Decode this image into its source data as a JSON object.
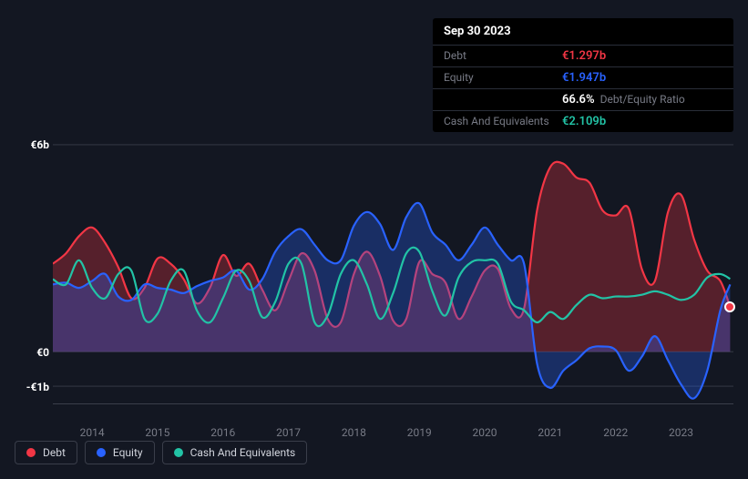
{
  "tooltip": {
    "date": "Sep 30 2023",
    "rows": [
      {
        "label": "Debt",
        "value": "€1.297b",
        "color": "#f23645"
      },
      {
        "label": "Equity",
        "value": "€1.947b",
        "color": "#2962ff"
      },
      {
        "label": "",
        "value": "66.6%",
        "extra": "Debt/Equity Ratio",
        "color": "#ffffff"
      },
      {
        "label": "Cash And Equivalents",
        "value": "€2.109b",
        "color": "#22c3a6"
      }
    ]
  },
  "chart": {
    "type": "area",
    "background_color": "#131722",
    "grid_color": "#3a3e4a",
    "y_domain": [
      -1.5,
      6.5
    ],
    "y_ticks": [
      {
        "v": 6,
        "label": "€6b"
      },
      {
        "v": 0,
        "label": "€0"
      },
      {
        "v": -1,
        "label": "-€1b"
      }
    ],
    "x_domain": [
      2013.4,
      2023.8
    ],
    "x_ticks": [
      2014,
      2015,
      2016,
      2017,
      2018,
      2019,
      2020,
      2021,
      2022,
      2023
    ],
    "series": {
      "debt": {
        "color": "#f23645",
        "fill_opacity": 0.3,
        "data": [
          [
            2013.4,
            2.55
          ],
          [
            2013.6,
            2.85
          ],
          [
            2013.8,
            3.35
          ],
          [
            2014.0,
            3.6
          ],
          [
            2014.2,
            3.15
          ],
          [
            2014.4,
            2.45
          ],
          [
            2014.6,
            1.55
          ],
          [
            2014.8,
            1.85
          ],
          [
            2015.0,
            2.7
          ],
          [
            2015.2,
            2.55
          ],
          [
            2015.4,
            2.1
          ],
          [
            2015.6,
            1.4
          ],
          [
            2015.8,
            1.85
          ],
          [
            2016.0,
            2.8
          ],
          [
            2016.2,
            2.2
          ],
          [
            2016.4,
            2.55
          ],
          [
            2016.6,
            1.8
          ],
          [
            2016.8,
            1.2
          ],
          [
            2017.0,
            2.05
          ],
          [
            2017.2,
            2.85
          ],
          [
            2017.4,
            2.35
          ],
          [
            2017.6,
            0.95
          ],
          [
            2017.8,
            0.85
          ],
          [
            2018.0,
            2.25
          ],
          [
            2018.2,
            2.9
          ],
          [
            2018.4,
            2.2
          ],
          [
            2018.6,
            0.9
          ],
          [
            2018.8,
            0.95
          ],
          [
            2019.0,
            2.6
          ],
          [
            2019.2,
            2.25
          ],
          [
            2019.4,
            2.0
          ],
          [
            2019.6,
            0.95
          ],
          [
            2019.8,
            1.6
          ],
          [
            2020.0,
            2.35
          ],
          [
            2020.2,
            2.4
          ],
          [
            2020.4,
            1.25
          ],
          [
            2020.6,
            1.25
          ],
          [
            2020.8,
            4.1
          ],
          [
            2021.0,
            5.35
          ],
          [
            2021.2,
            5.45
          ],
          [
            2021.4,
            5.05
          ],
          [
            2021.6,
            4.9
          ],
          [
            2021.8,
            4.1
          ],
          [
            2022.0,
            3.95
          ],
          [
            2022.2,
            4.15
          ],
          [
            2022.4,
            2.4
          ],
          [
            2022.6,
            2.05
          ],
          [
            2022.8,
            4.05
          ],
          [
            2023.0,
            4.55
          ],
          [
            2023.2,
            3.25
          ],
          [
            2023.4,
            2.35
          ],
          [
            2023.6,
            2.05
          ],
          [
            2023.75,
            1.3
          ]
        ]
      },
      "equity": {
        "color": "#2962ff",
        "fill_opacity": 0.3,
        "data": [
          [
            2013.4,
            1.95
          ],
          [
            2013.6,
            2.0
          ],
          [
            2013.8,
            1.85
          ],
          [
            2014.0,
            2.05
          ],
          [
            2014.2,
            2.25
          ],
          [
            2014.4,
            1.6
          ],
          [
            2014.6,
            1.5
          ],
          [
            2014.8,
            1.95
          ],
          [
            2015.0,
            1.85
          ],
          [
            2015.2,
            1.8
          ],
          [
            2015.4,
            1.7
          ],
          [
            2015.6,
            1.9
          ],
          [
            2015.8,
            2.05
          ],
          [
            2016.0,
            2.15
          ],
          [
            2016.2,
            2.35
          ],
          [
            2016.4,
            1.8
          ],
          [
            2016.6,
            2.1
          ],
          [
            2016.8,
            2.9
          ],
          [
            2017.0,
            3.35
          ],
          [
            2017.2,
            3.55
          ],
          [
            2017.4,
            3.1
          ],
          [
            2017.6,
            2.65
          ],
          [
            2017.8,
            2.65
          ],
          [
            2018.0,
            3.65
          ],
          [
            2018.2,
            4.05
          ],
          [
            2018.4,
            3.7
          ],
          [
            2018.6,
            2.95
          ],
          [
            2018.8,
            3.9
          ],
          [
            2019.0,
            4.3
          ],
          [
            2019.2,
            3.45
          ],
          [
            2019.4,
            3.1
          ],
          [
            2019.6,
            2.65
          ],
          [
            2019.8,
            3.1
          ],
          [
            2020.0,
            3.6
          ],
          [
            2020.2,
            3.1
          ],
          [
            2020.4,
            2.65
          ],
          [
            2020.6,
            2.55
          ],
          [
            2020.8,
            -0.35
          ],
          [
            2021.0,
            -1.05
          ],
          [
            2021.2,
            -0.55
          ],
          [
            2021.4,
            -0.25
          ],
          [
            2021.6,
            0.1
          ],
          [
            2021.8,
            0.15
          ],
          [
            2022.0,
            0.05
          ],
          [
            2022.2,
            -0.55
          ],
          [
            2022.4,
            -0.15
          ],
          [
            2022.6,
            0.45
          ],
          [
            2022.8,
            -0.25
          ],
          [
            2023.0,
            -0.95
          ],
          [
            2023.2,
            -1.35
          ],
          [
            2023.4,
            -0.55
          ],
          [
            2023.6,
            1.2
          ],
          [
            2023.75,
            1.95
          ]
        ]
      },
      "cash": {
        "color": "#22c3a6",
        "fill_opacity": 0.0,
        "data": [
          [
            2013.4,
            2.1
          ],
          [
            2013.6,
            1.95
          ],
          [
            2013.8,
            2.65
          ],
          [
            2014.0,
            1.85
          ],
          [
            2014.2,
            1.55
          ],
          [
            2014.4,
            2.25
          ],
          [
            2014.6,
            2.35
          ],
          [
            2014.8,
            0.95
          ],
          [
            2015.0,
            1.1
          ],
          [
            2015.2,
            2.05
          ],
          [
            2015.4,
            2.35
          ],
          [
            2015.6,
            1.2
          ],
          [
            2015.8,
            0.85
          ],
          [
            2016.0,
            1.55
          ],
          [
            2016.2,
            2.35
          ],
          [
            2016.4,
            2.05
          ],
          [
            2016.6,
            1.0
          ],
          [
            2016.8,
            1.45
          ],
          [
            2017.0,
            2.55
          ],
          [
            2017.2,
            2.55
          ],
          [
            2017.4,
            0.85
          ],
          [
            2017.6,
            1.05
          ],
          [
            2017.8,
            2.25
          ],
          [
            2018.0,
            2.65
          ],
          [
            2018.2,
            1.95
          ],
          [
            2018.4,
            0.95
          ],
          [
            2018.6,
            1.7
          ],
          [
            2018.8,
            2.85
          ],
          [
            2019.0,
            2.9
          ],
          [
            2019.2,
            1.75
          ],
          [
            2019.4,
            1.05
          ],
          [
            2019.6,
            2.15
          ],
          [
            2019.8,
            2.6
          ],
          [
            2020.0,
            2.65
          ],
          [
            2020.2,
            2.55
          ],
          [
            2020.4,
            1.45
          ],
          [
            2020.6,
            1.2
          ],
          [
            2020.8,
            0.85
          ],
          [
            2021.0,
            1.15
          ],
          [
            2021.2,
            0.95
          ],
          [
            2021.4,
            1.35
          ],
          [
            2021.6,
            1.65
          ],
          [
            2021.8,
            1.55
          ],
          [
            2022.0,
            1.6
          ],
          [
            2022.2,
            1.6
          ],
          [
            2022.4,
            1.65
          ],
          [
            2022.6,
            1.75
          ],
          [
            2022.8,
            1.65
          ],
          [
            2023.0,
            1.5
          ],
          [
            2023.2,
            1.65
          ],
          [
            2023.4,
            2.15
          ],
          [
            2023.6,
            2.25
          ],
          [
            2023.75,
            2.11
          ]
        ]
      }
    },
    "marker": {
      "x": 2023.75,
      "series": "debt"
    }
  },
  "legend": [
    {
      "label": "Debt",
      "color": "#f23645"
    },
    {
      "label": "Equity",
      "color": "#2962ff"
    },
    {
      "label": "Cash And Equivalents",
      "color": "#22c3a6"
    }
  ]
}
